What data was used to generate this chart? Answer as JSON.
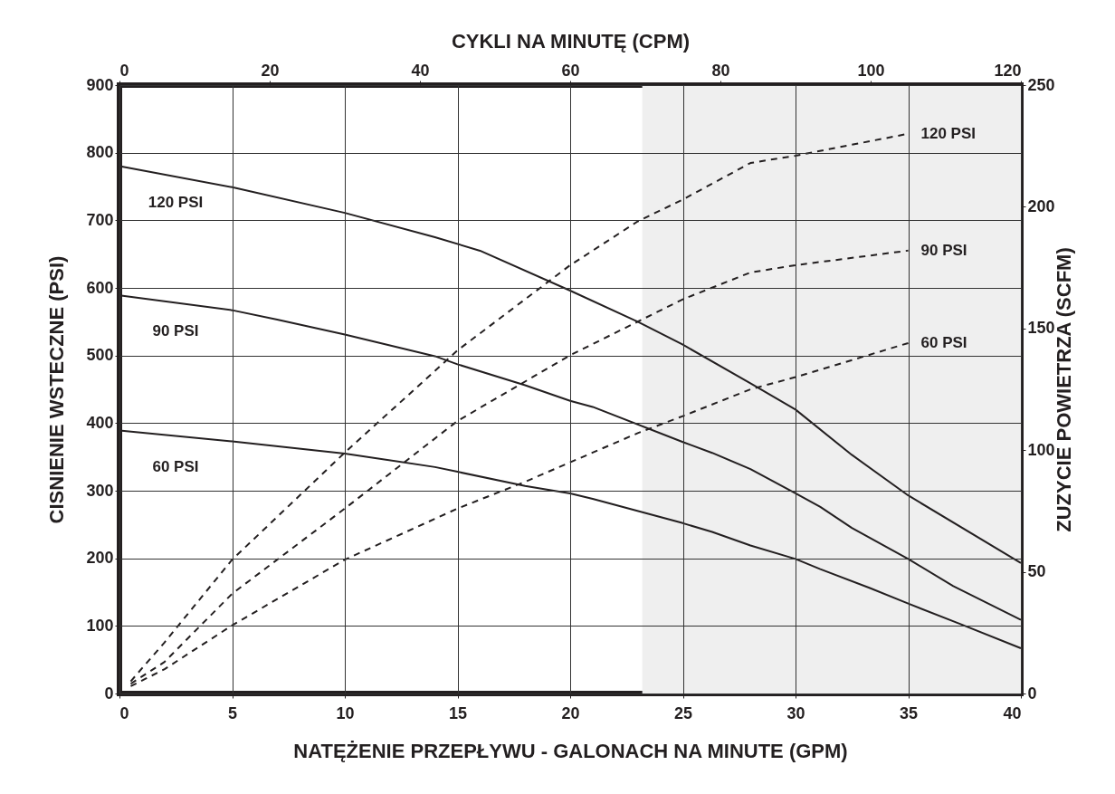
{
  "chart_data": {
    "type": "line",
    "xlabel": "NATĘŻENIE PRZEPŁYWU - GALONACH NA MINUTE (GPM)",
    "x2label": "CYKLI NA MINUTĘ (CPM)",
    "ylabel": "CISNIENIE WSTECZNE  (PSI)",
    "y2label": "ZUZYCIE POWIETRZA (SCFM)",
    "xlim": [
      0,
      40
    ],
    "xticks": [
      0,
      5,
      10,
      15,
      20,
      25,
      30,
      35,
      40
    ],
    "x2lim": [
      0,
      120
    ],
    "x2ticks": [
      0,
      20,
      40,
      60,
      80,
      100,
      120
    ],
    "ylim": [
      0,
      900
    ],
    "yticks": [
      0,
      100,
      200,
      300,
      400,
      500,
      600,
      700,
      800,
      900
    ],
    "y2lim": [
      0,
      250
    ],
    "y2ticks": [
      0,
      50,
      100,
      150,
      200,
      250
    ],
    "grid": true,
    "marker": "none",
    "bands": [
      {
        "axis": "x",
        "from": 23.2,
        "to": 40,
        "color": "#efefef"
      }
    ],
    "series": [
      {
        "name": "120 PSI",
        "color": "#231f20",
        "line_style": "solid",
        "x": [
          0,
          5,
          10,
          14,
          16,
          20,
          23,
          25,
          28,
          30,
          32.5,
          35,
          40
        ],
        "values": [
          780,
          749,
          711,
          675,
          655,
          596,
          550,
          516,
          459,
          420,
          353,
          293,
          193
        ]
      },
      {
        "name": "90 PSI",
        "color": "#231f20",
        "line_style": "solid",
        "x": [
          0,
          5,
          7,
          10,
          14,
          15,
          18,
          20,
          21,
          25,
          26.3,
          28,
          30,
          31.1,
          32.5,
          35,
          37,
          40
        ],
        "values": [
          589,
          567,
          553,
          531,
          499,
          487,
          456,
          433,
          424,
          372,
          356,
          332,
          296,
          276,
          245,
          199,
          159,
          109
        ]
      },
      {
        "name": "60 PSI",
        "color": "#231f20",
        "line_style": "solid",
        "x": [
          0,
          5,
          10,
          14,
          15,
          18,
          20,
          21,
          25,
          26.3,
          28,
          30,
          31.1,
          33.3,
          35,
          37.3,
          40
        ],
        "values": [
          389,
          373,
          355,
          335,
          328,
          307,
          296,
          288,
          252,
          239,
          219,
          199,
          184,
          156,
          133,
          103,
          67
        ]
      },
      {
        "name": "120 PSI",
        "color": "#231f20",
        "line_style": "dashed",
        "axis": "y2",
        "x": [
          0.5,
          2,
          5,
          10,
          15,
          20,
          23,
          25,
          28,
          30,
          35
        ],
        "values": [
          5,
          21,
          55,
          99,
          141,
          176,
          194,
          203,
          218,
          221,
          230
        ]
      },
      {
        "name": "90 PSI",
        "color": "#231f20",
        "line_style": "dashed",
        "axis": "y2",
        "x": [
          0.5,
          2,
          5,
          10,
          15,
          20,
          25,
          28,
          30,
          35
        ],
        "values": [
          4,
          13,
          41,
          76,
          112,
          139,
          162,
          173,
          176,
          182
        ]
      },
      {
        "name": "60 PSI",
        "color": "#231f20",
        "line_style": "dashed",
        "axis": "y2",
        "x": [
          0.5,
          2,
          5,
          10,
          15,
          18,
          20,
          23,
          25,
          28,
          30,
          35
        ],
        "values": [
          3,
          10,
          28,
          55,
          76,
          87,
          95,
          107,
          114,
          125,
          130,
          144
        ]
      }
    ]
  }
}
